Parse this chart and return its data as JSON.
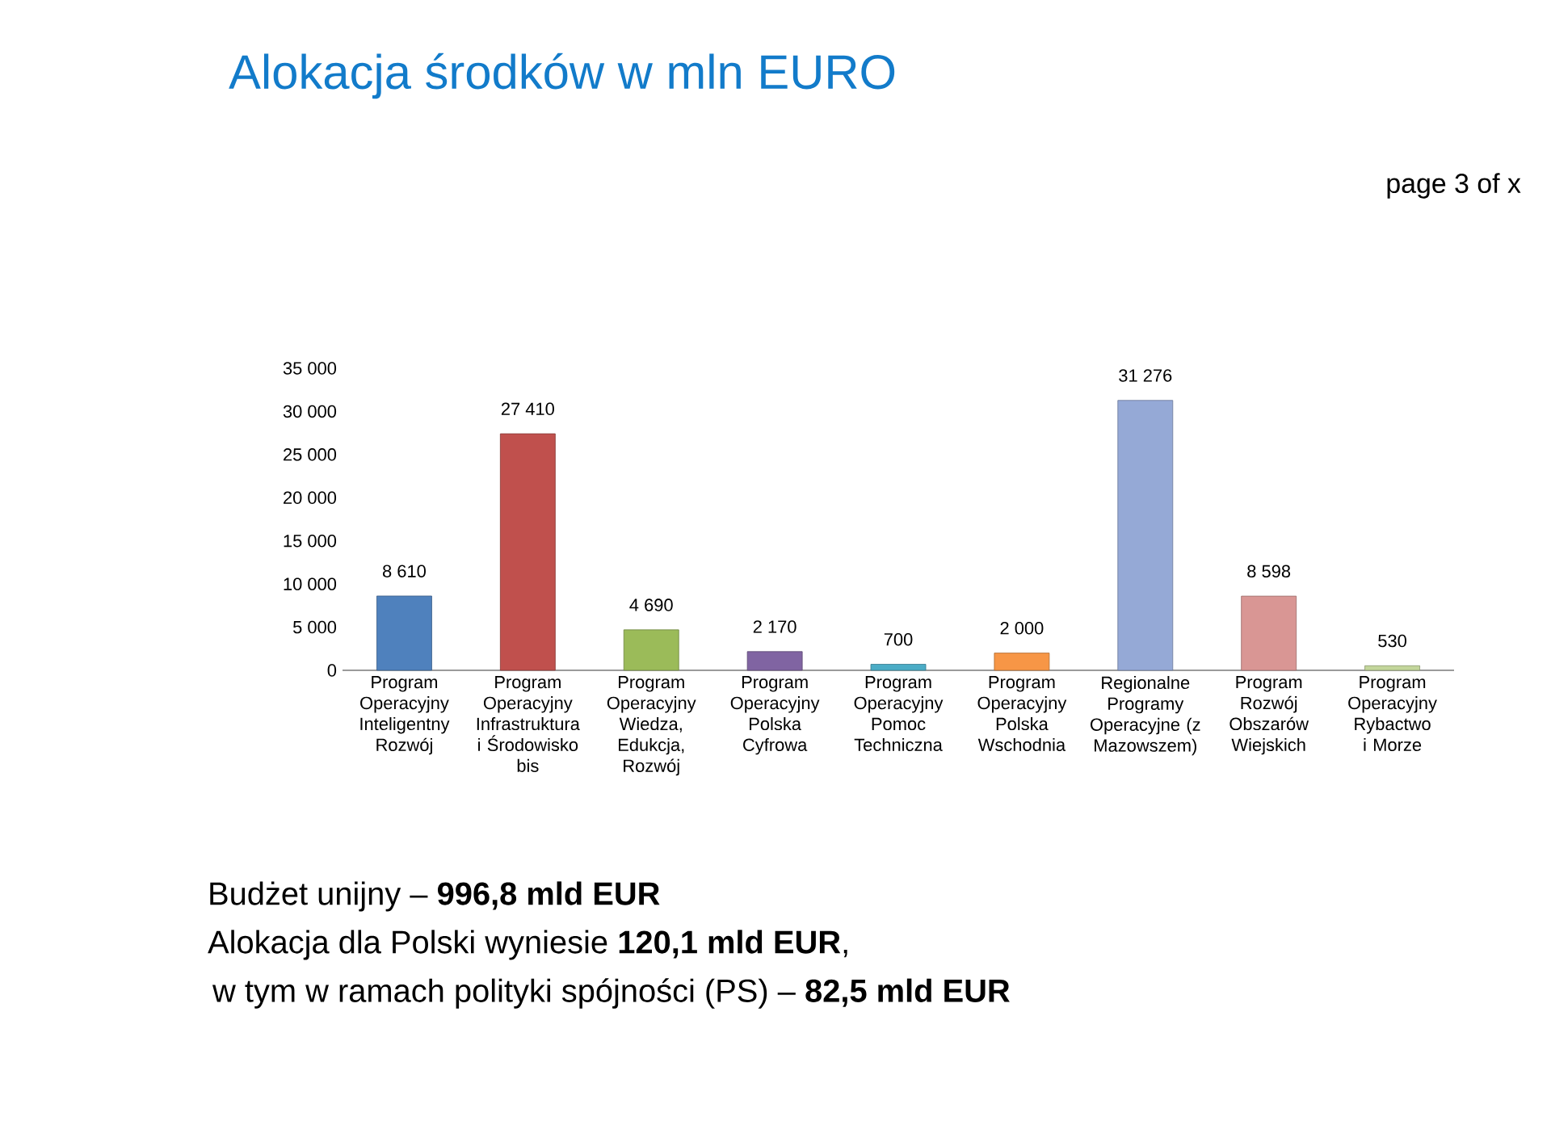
{
  "chart_data": {
    "type": "bar",
    "title": "Alokacja środków w mln EURO",
    "categories": [
      "Program Operacyjny Inteligentny Rozwój",
      "Program Operacyjny Infrastruktura i Środowisko bis",
      "Program Operacyjny Wiedza, Edukcja, Rozwój",
      "Program Operacyjny Polska Cyfrowa",
      "Program Operacyjny Pomoc Techniczna",
      "Program Operacyjny Polska Wschodnia",
      "Regionalne Programy Operacyjne (z Mazowszem)",
      "Program Rozwój Obszarów Wiejskich",
      "Program Operacyjny Rybactwo i Morze"
    ],
    "values": [
      8610,
      27410,
      4690,
      2170,
      700,
      2000,
      31276,
      8598,
      530
    ],
    "value_labels": [
      "8 610",
      "27 410",
      "4 690",
      "2 170",
      "700",
      "2 000",
      "31 276",
      "8 598",
      "530"
    ],
    "colors": [
      "#4f81bd",
      "#c0504d",
      "#9bbb59",
      "#8064a2",
      "#4bacc6",
      "#f79646",
      "#95a9d6",
      "#d99694",
      "#c3d69b"
    ],
    "ylim": [
      0,
      35000
    ],
    "yticks": [
      {
        "value": 0,
        "label": "0"
      },
      {
        "value": 5000,
        "label": "5 000"
      },
      {
        "value": 10000,
        "label": "10 000"
      },
      {
        "value": 15000,
        "label": "15 000"
      },
      {
        "value": 20000,
        "label": "20 000"
      },
      {
        "value": 25000,
        "label": "25 000"
      },
      {
        "value": 30000,
        "label": "30 000"
      },
      {
        "value": 35000,
        "label": "35 000"
      }
    ],
    "annotations": [
      "page 3 of x",
      "Budżet unijny – **996,8 mld EUR**",
      "Alokacja dla Polski wyniesie **120,1 mld EUR**,",
      "w tym w ramach polityki spójności (PS) – **82,5 mld EUR**"
    ]
  }
}
